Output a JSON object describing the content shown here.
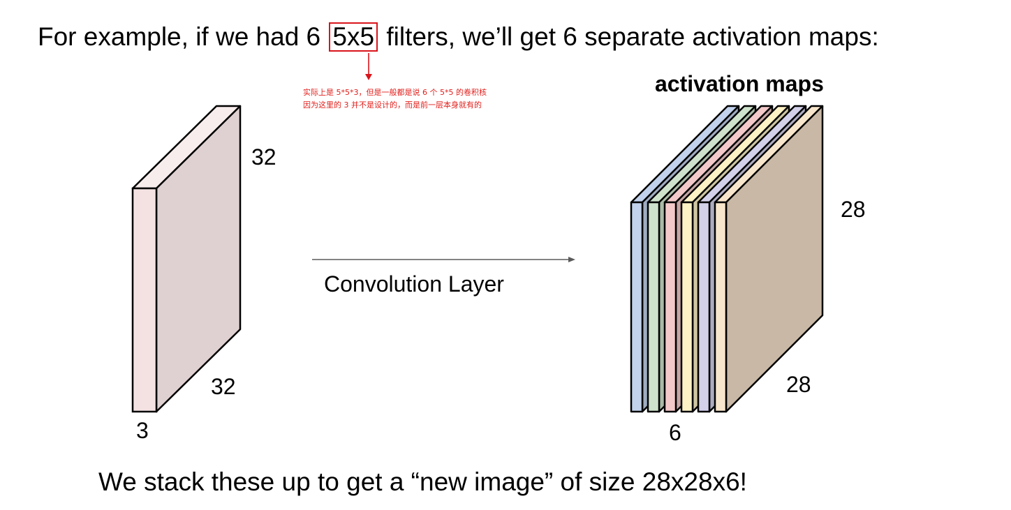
{
  "headline": {
    "prefix": "For example, if we had 6 ",
    "highlight": "5x5",
    "suffix": " filters, we’ll get 6 separate activation maps:"
  },
  "annotation": {
    "line1": "实际上是 5*5*3，但是一般都是说 6 个 5*5 的卷积核",
    "line2": "因为这里的 3 并不是设计的，而是前一层本身就有的",
    "color": "#e0201c"
  },
  "input_volume": {
    "height_label": "32",
    "width_label": "32",
    "depth_label": "3",
    "front_color": "#f4e2e3",
    "side_color": "#dfd0d1"
  },
  "arrow": {
    "label": "Convolution Layer"
  },
  "activation_maps": {
    "title": "activation maps",
    "height_label": "28",
    "width_label": "28",
    "depth_label": "6",
    "slice_colors": [
      "#c2d2ec",
      "#cfe3cc",
      "#f3c9c9",
      "#fdf2c6",
      "#d3d1ea",
      "#f8e6cc"
    ],
    "last_face_color": "#c8b8a5"
  },
  "footer": {
    "text": "We stack these up to get a “new image” of size 28x28x6!"
  }
}
